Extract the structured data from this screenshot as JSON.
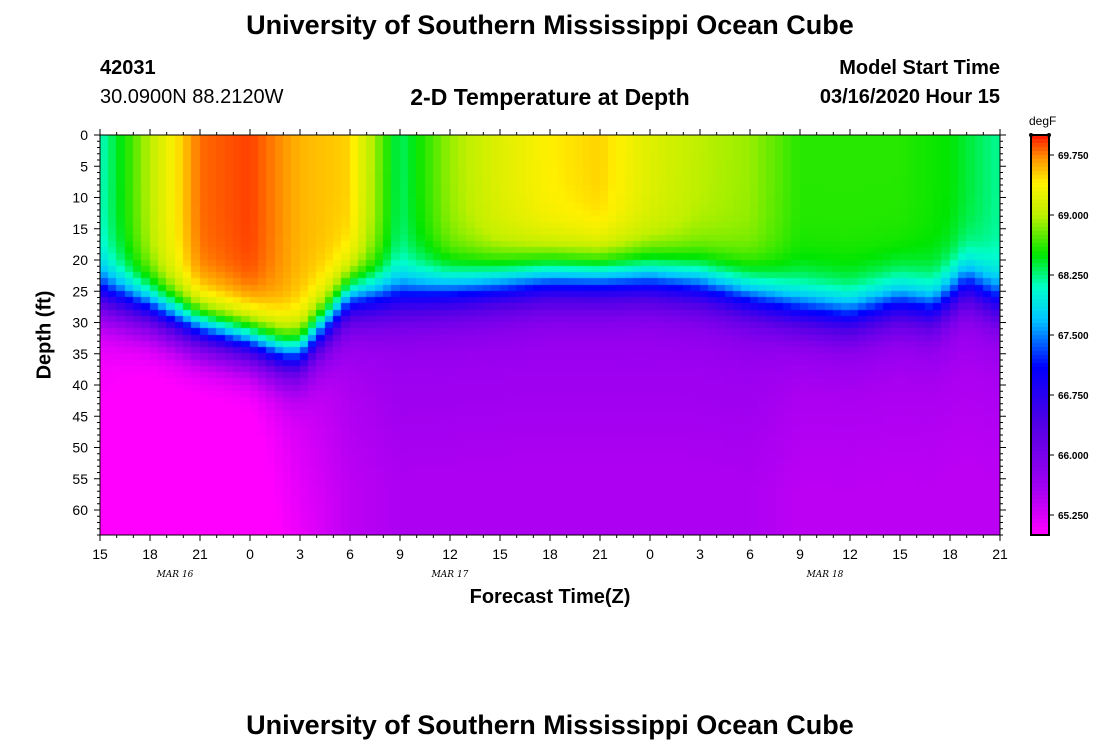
{
  "header": {
    "top_title": "University of Southern Mississippi Ocean Cube",
    "bottom_title": "University of Southern Mississippi Ocean Cube",
    "station_id": "42031",
    "station_coords": "30.0900N 88.2120W",
    "model_start_label": "Model Start Time",
    "model_start_value": "03/16/2020 Hour 15"
  },
  "chart_data": {
    "type": "heatmap",
    "title": "2-D Temperature at Depth",
    "xlabel": "Forecast Time(Z)",
    "ylabel": "Depth (ft)",
    "x_ticks": [
      "15",
      "18",
      "21",
      "0",
      "3",
      "6",
      "9",
      "12",
      "15",
      "18",
      "21",
      "0",
      "3",
      "6",
      "9",
      "12",
      "15",
      "18",
      "21"
    ],
    "x_hours": [
      0,
      3,
      6,
      9,
      12,
      15,
      18,
      21,
      24,
      27,
      30,
      33,
      36,
      39,
      42,
      45,
      48,
      51,
      54
    ],
    "date_labels": [
      {
        "text": "MAR 16",
        "hour": 4.5
      },
      {
        "text": "MAR 17",
        "hour": 21
      },
      {
        "text": "MAR 18",
        "hour": 43.5
      }
    ],
    "y_ticks": [
      0,
      5,
      10,
      15,
      20,
      25,
      30,
      35,
      40,
      45,
      50,
      55,
      60
    ],
    "xlim": [
      0,
      54
    ],
    "ylim": [
      0,
      64
    ],
    "colorbar": {
      "unit": "degF",
      "min": 65.0,
      "max": 70.0,
      "tick_values": [
        69.75,
        69.0,
        68.25,
        67.5,
        66.75,
        66.0,
        65.25
      ],
      "tick_labels": [
        "69.750",
        "69.000",
        "68.250",
        "67.500",
        "66.750",
        "66.000",
        "65.250"
      ]
    },
    "thermocline_depth_ft": {
      "hours": [
        0,
        3,
        6,
        9,
        11,
        12,
        13,
        15,
        18,
        21,
        24,
        27,
        30,
        33,
        36,
        39,
        42,
        45,
        48,
        50,
        52,
        54
      ],
      "depth": [
        26,
        28,
        31,
        33,
        35,
        35,
        32,
        26,
        26,
        25,
        24,
        23,
        23,
        23,
        24,
        26,
        28,
        29,
        27,
        28,
        24,
        27
      ]
    },
    "surface_temp_degF": {
      "hours": [
        0,
        3,
        6,
        9,
        12,
        15,
        18,
        21,
        24,
        27,
        30,
        33,
        36,
        39,
        42,
        45,
        48,
        51,
        54
      ],
      "value": [
        68.1,
        69.0,
        69.8,
        69.9,
        69.6,
        69.5,
        68.3,
        68.9,
        69.2,
        69.4,
        69.5,
        69.2,
        69.0,
        68.9,
        68.6,
        68.6,
        68.6,
        68.5,
        68.2
      ]
    },
    "deep_temp_degF": {
      "hours": [
        0,
        3,
        6,
        9,
        12,
        15,
        18,
        21,
        24,
        27,
        30,
        33,
        36,
        39,
        42,
        45,
        48,
        51,
        54
      ],
      "value": [
        65.1,
        65.0,
        65.0,
        65.0,
        65.3,
        65.6,
        65.7,
        65.7,
        65.7,
        65.7,
        65.7,
        65.7,
        65.7,
        65.7,
        65.6,
        65.6,
        65.6,
        65.6,
        65.6
      ]
    }
  }
}
